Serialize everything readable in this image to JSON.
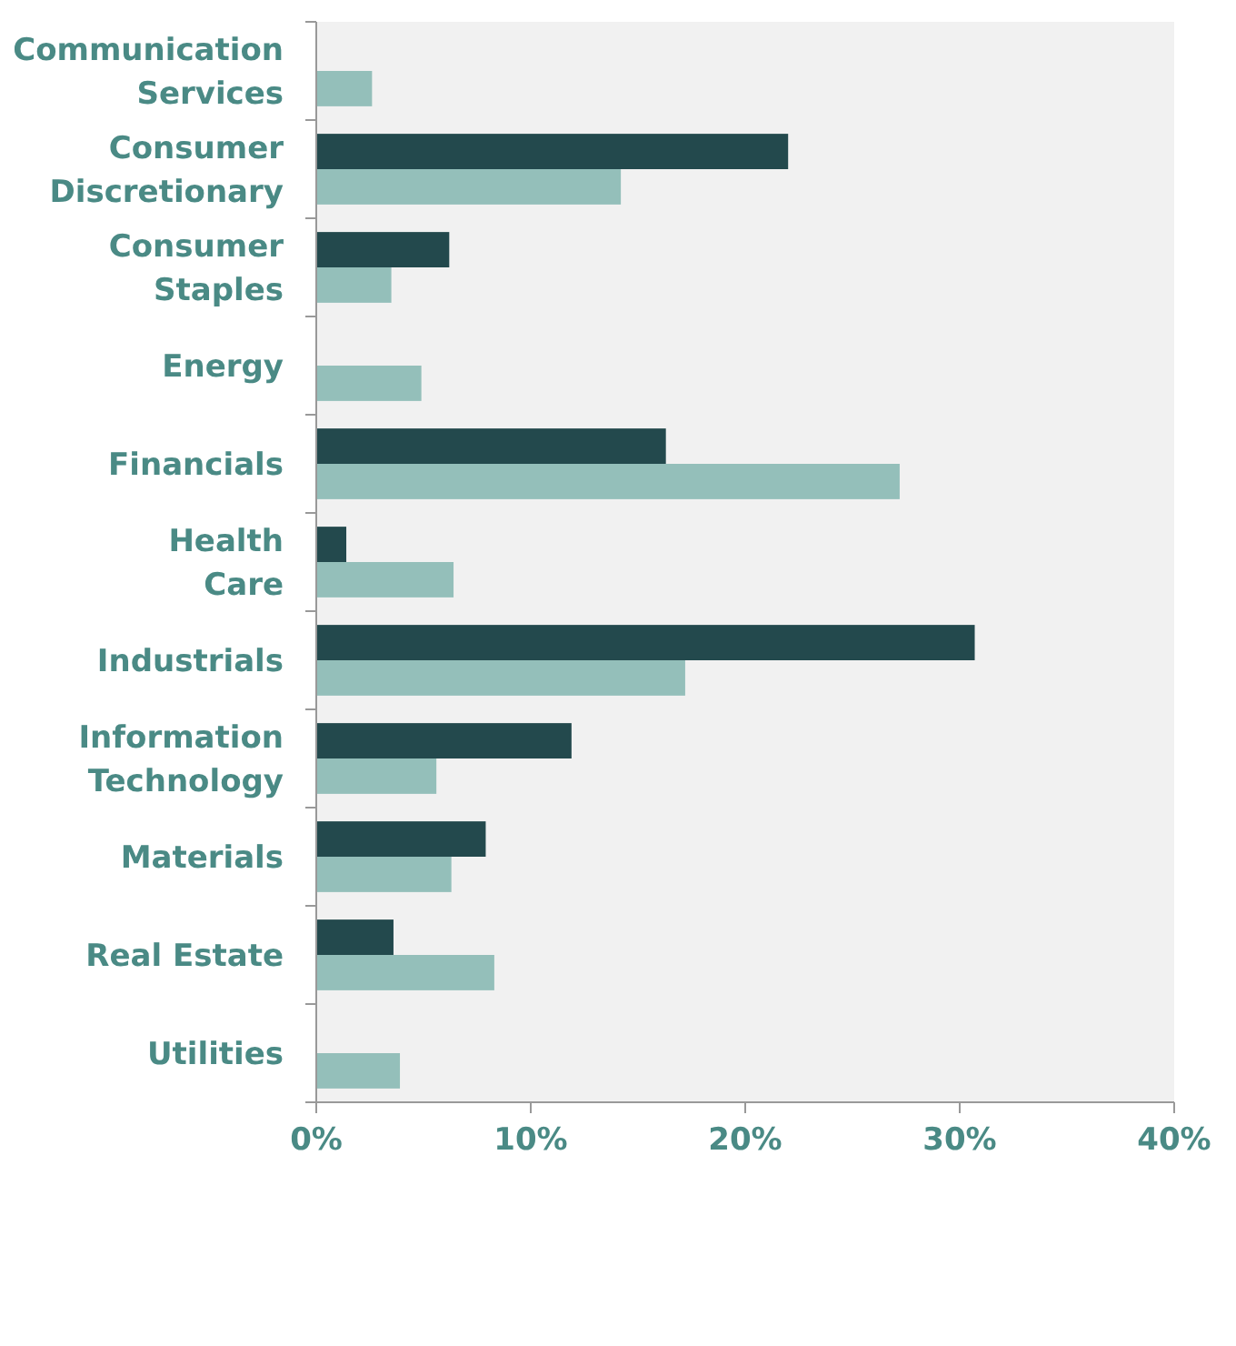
{
  "chart_data": {
    "type": "bar",
    "orientation": "horizontal",
    "categories": [
      "Communication\nServices",
      "Consumer\nDiscretionary",
      "Consumer\nStaples",
      "Energy",
      "Financials",
      "Health\nCare",
      "Industrials",
      "Information\nTechnology",
      "Materials",
      "Real Estate",
      "Utilities"
    ],
    "series": [
      {
        "color": "#23494d",
        "values": [
          null,
          22.0,
          6.2,
          null,
          16.3,
          1.4,
          30.7,
          11.9,
          7.9,
          3.6,
          null
        ]
      },
      {
        "color": "#94bfba",
        "values": [
          2.6,
          14.2,
          3.5,
          4.9,
          27.2,
          6.4,
          17.2,
          5.6,
          6.3,
          8.3,
          3.9
        ]
      }
    ],
    "xlim": [
      0,
      40
    ],
    "xticks": [
      {
        "value": 0,
        "label": "0%"
      },
      {
        "value": 10,
        "label": "10%"
      },
      {
        "value": 20,
        "label": "20%"
      },
      {
        "value": 30,
        "label": "30%"
      },
      {
        "value": 40,
        "label": "40%"
      }
    ],
    "grid": false,
    "legend": false
  }
}
